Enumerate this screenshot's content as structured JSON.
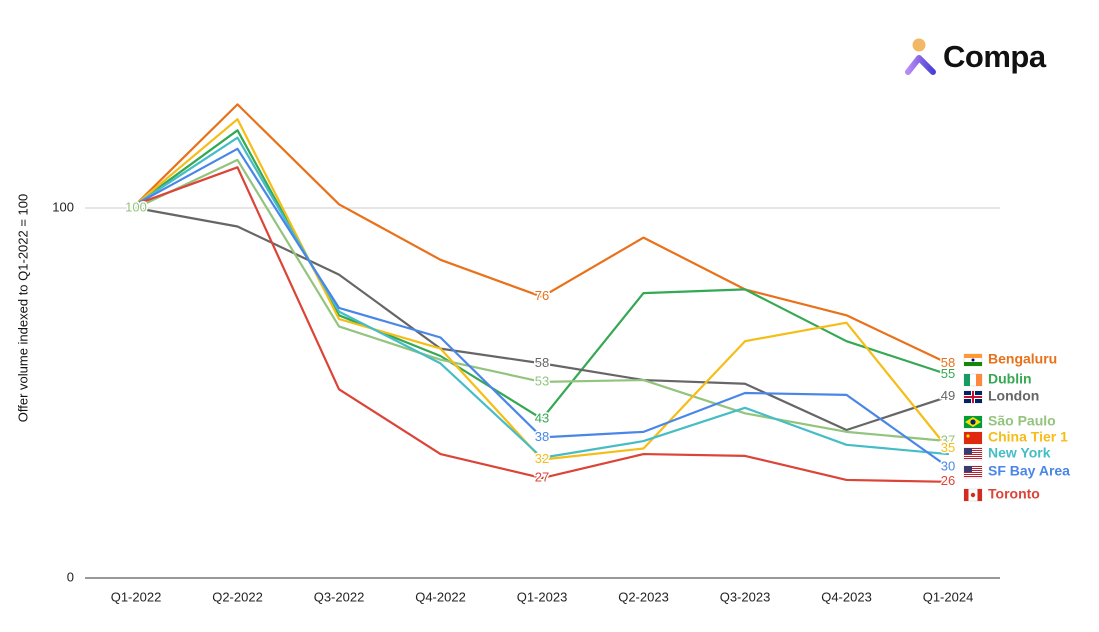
{
  "brand": {
    "name": "Compa"
  },
  "chart_data": {
    "type": "line",
    "title": "",
    "xlabel": "",
    "ylabel": "Offer volume indexed to Q1-2022 = 100",
    "ylim": [
      0,
      140
    ],
    "yticks": [
      0,
      100
    ],
    "categories": [
      "Q1-2022",
      "Q2-2022",
      "Q3-2022",
      "Q4-2022",
      "Q1-2023",
      "Q2-2023",
      "Q3-2023",
      "Q4-2023",
      "Q1-2024"
    ],
    "grid": "horizontal",
    "legend": "right, at end of lines",
    "series": [
      {
        "name": "Bengaluru",
        "flag": "india",
        "color": "#E8711A",
        "values": [
          101,
          128,
          101,
          86,
          76,
          92,
          78,
          71,
          58
        ],
        "labels": [
          {
            "index": 4,
            "text": "76"
          },
          {
            "index": 8,
            "text": "58"
          }
        ]
      },
      {
        "name": "Dublin",
        "flag": "ireland",
        "color": "#34A853",
        "values": [
          101,
          121,
          71,
          60,
          43,
          77,
          78,
          64,
          55
        ],
        "labels": [
          {
            "index": 4,
            "text": "43"
          },
          {
            "index": 8,
            "text": "55"
          }
        ]
      },
      {
        "name": "London",
        "flag": "uk",
        "color": "#666666",
        "values": [
          100,
          95,
          82,
          62,
          58,
          53.5,
          52.5,
          40,
          49
        ],
        "labels": [
          {
            "index": 4,
            "text": "58"
          },
          {
            "index": 8,
            "text": "49"
          }
        ]
      },
      {
        "name": "São Paulo",
        "flag": "brazil",
        "color": "#93C47D",
        "values": [
          100,
          113,
          68,
          59,
          53,
          53.5,
          44.5,
          39.5,
          37
        ],
        "labels": [
          {
            "index": 0,
            "text": "100"
          },
          {
            "index": 4,
            "text": "53"
          },
          {
            "index": 8,
            "text": "37"
          }
        ]
      },
      {
        "name": "China Tier 1",
        "flag": "china",
        "color": "#F6BD16",
        "values": [
          101,
          124,
          70,
          62,
          32,
          35,
          64,
          69,
          35
        ],
        "labels": [
          {
            "index": 4,
            "text": "32"
          },
          {
            "index": 8,
            "text": "35"
          }
        ]
      },
      {
        "name": "New York",
        "flag": "us",
        "color": "#46BDC6",
        "values": [
          101,
          119,
          72,
          58,
          32.5,
          37,
          46,
          36,
          33.5
        ],
        "labels": []
      },
      {
        "name": "SF Bay Area",
        "flag": "us",
        "color": "#4A86E8",
        "values": [
          101,
          116,
          73,
          65,
          38,
          39.5,
          50,
          49.5,
          30
        ],
        "labels": [
          {
            "index": 4,
            "text": "38"
          },
          {
            "index": 8,
            "text": "30"
          }
        ]
      },
      {
        "name": "Toronto",
        "flag": "canada",
        "color": "#DB4437",
        "values": [
          101,
          111,
          51,
          33.5,
          27,
          33.5,
          33,
          26.5,
          26
        ],
        "labels": [
          {
            "index": 4,
            "text": "27"
          },
          {
            "index": 8,
            "text": "26"
          }
        ]
      }
    ]
  }
}
